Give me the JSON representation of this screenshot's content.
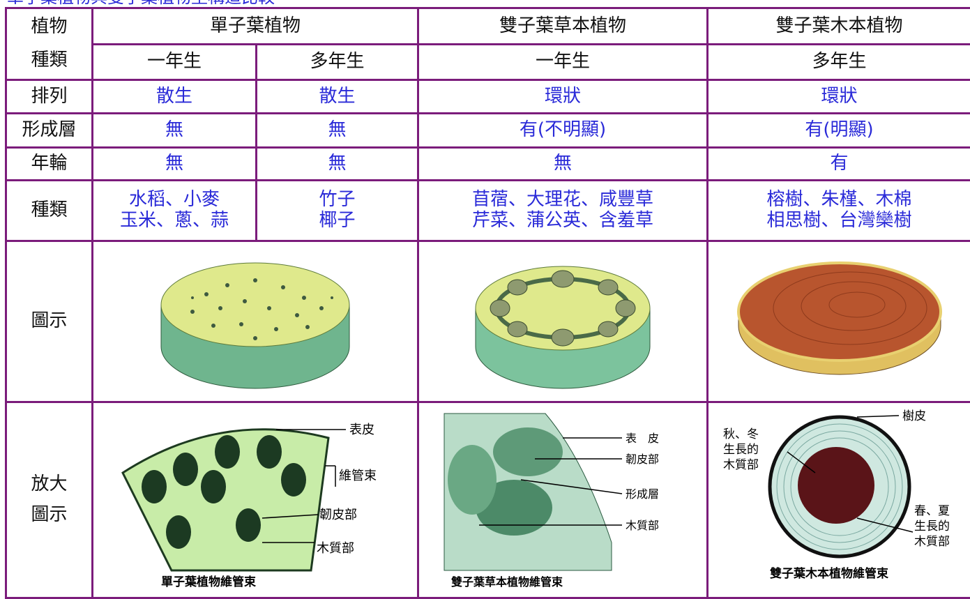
{
  "header": {
    "title": "單子葉植物與雙子葉植物莖構造比較"
  },
  "table": {
    "head": {
      "corner": [
        "植物",
        "種類"
      ],
      "groups": [
        "單子葉植物",
        "雙子葉草本植物",
        "雙子葉木本植物"
      ],
      "life": [
        "一年生",
        "多年生",
        "一年生",
        "多年生"
      ]
    },
    "rows": [
      [
        "排列",
        "散生",
        "散生",
        "環狀",
        "環狀"
      ],
      [
        "形成層",
        "無",
        "無",
        "有(不明顯)",
        "有(明顯)"
      ],
      [
        "年輪",
        "無",
        "無",
        "無",
        "有"
      ],
      [
        "種類",
        [
          "水稻、小麥",
          "玉米、蔥、蒜"
        ],
        [
          "竹子",
          "椰子"
        ],
        [
          "苜蓿、大理花、咸豐草",
          "芹菜、蒲公英、含羞草"
        ],
        [
          "榕樹、朱槿、木棉",
          "相思樹、台灣欒樹"
        ]
      ]
    ],
    "figure_row": "圖示",
    "zoom_row": [
      "放大",
      "圖示"
    ],
    "zoom": [
      {
        "labels": [
          "表皮",
          "維管束",
          "韌皮部",
          "木質部"
        ],
        "caption": "單子葉植物維管束"
      },
      {
        "labels": [
          "表　皮",
          "韌皮部",
          "形成層",
          "木質部"
        ],
        "caption": "雙子葉草本植物維管束"
      },
      {
        "labels": [
          "樹皮",
          [
            "秋、冬",
            "生長的",
            "木質部"
          ],
          [
            "春、夏",
            "生長的",
            "木質部"
          ]
        ],
        "caption": "雙子葉木本植物維管束"
      }
    ]
  }
}
